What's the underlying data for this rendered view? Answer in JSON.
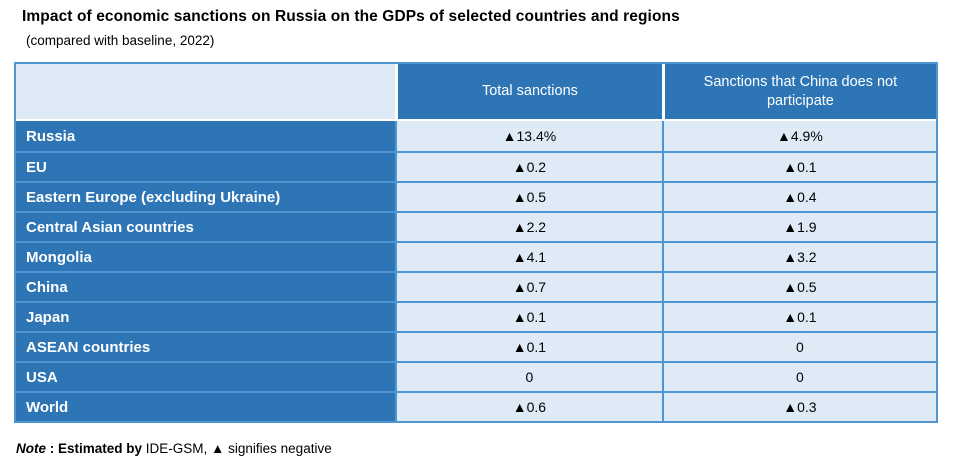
{
  "header": {
    "title": "Impact of economic sanctions on Russia on the GDPs of selected countries and regions",
    "subtitle": "(compared with baseline, 2022)"
  },
  "table": {
    "columns": {
      "corner": "",
      "total": "Total sanctions",
      "no_china": "Sanctions that China does not participate"
    },
    "rows": [
      {
        "label": "Russia",
        "total": "▲13.4%",
        "no_china": "▲4.9%"
      },
      {
        "label": "EU",
        "total": "▲0.2",
        "no_china": "▲0.1"
      },
      {
        "label": "Eastern Europe (excluding Ukraine)",
        "total": "▲0.5",
        "no_china": "▲0.4"
      },
      {
        "label": "Central Asian countries",
        "total": "▲2.2",
        "no_china": "▲1.9"
      },
      {
        "label": "Mongolia",
        "total": "▲4.1",
        "no_china": "▲3.2"
      },
      {
        "label": "China",
        "total": "▲0.7",
        "no_china": "▲0.5"
      },
      {
        "label": "Japan",
        "total": "▲0.1",
        "no_china": "▲0.1"
      },
      {
        "label": "ASEAN countries",
        "total": "▲0.1",
        "no_china": "0"
      },
      {
        "label": "USA",
        "total": "0",
        "no_china": "0"
      },
      {
        "label": "World",
        "total": "▲0.6",
        "no_china": "▲0.3"
      }
    ]
  },
  "note": {
    "prefix": "Note",
    "sep": " : ",
    "bold": "Estimated by ",
    "rest": "IDE-GSM, ▲ signifies negative"
  },
  "colors": {
    "header_blue": "#2E75B6",
    "cell_light_blue": "#DEEBF7",
    "border_blue": "#4E95D1",
    "text_on_blue": "#ffffff",
    "text_dark": "#000000"
  },
  "chart_data": {
    "type": "table",
    "title": "Impact of economic sanctions on Russia on the GDPs of selected countries and regions",
    "subtitle": "(compared with baseline, 2022)",
    "columns": [
      "",
      "Total sanctions",
      "Sanctions that China does not participate"
    ],
    "categories": [
      "Russia",
      "EU",
      "Eastern Europe (excluding Ukraine)",
      "Central Asian countries",
      "Mongolia",
      "China",
      "Japan",
      "ASEAN countries",
      "USA",
      "World"
    ],
    "series": [
      {
        "name": "Total sanctions",
        "values": [
          -13.4,
          -0.2,
          -0.5,
          -2.2,
          -4.1,
          -0.7,
          -0.1,
          -0.1,
          0,
          -0.6
        ]
      },
      {
        "name": "Sanctions that China does not participate",
        "values": [
          -4.9,
          -0.1,
          -0.4,
          -1.9,
          -3.2,
          -0.5,
          -0.1,
          0,
          0,
          -0.3
        ]
      }
    ],
    "unit": "% GDP change vs baseline, ▲ signifies negative",
    "note": "Note : Estimated by IDE-GSM, ▲ signifies negative"
  }
}
